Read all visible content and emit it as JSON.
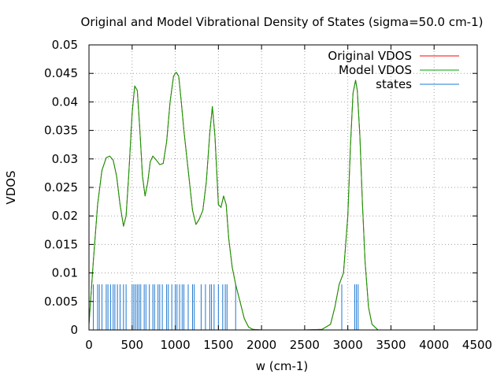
{
  "chart_data": {
    "type": "line",
    "title": "Original and Model Vibrational Density of States (sigma=50.0 cm-1)",
    "xlabel": "w (cm-1)",
    "ylabel": "VDOS",
    "xlim": [
      0,
      4500
    ],
    "ylim": [
      0,
      0.05
    ],
    "xticks": [
      "0",
      "500",
      "1000",
      "1500",
      "2000",
      "2500",
      "3000",
      "3500",
      "4000",
      "4500"
    ],
    "yticks": [
      "0",
      "0.005",
      "0.01",
      "0.015",
      "0.02",
      "0.025",
      "0.03",
      "0.035",
      "0.04",
      "0.045",
      "0.05"
    ],
    "grid": true,
    "legend_position": "top-right",
    "series": [
      {
        "name": "Original VDOS",
        "color": "#ff0000",
        "x": [
          0,
          50,
          100,
          150,
          200,
          240,
          280,
          320,
          360,
          400,
          430,
          460,
          500,
          530,
          560,
          590,
          620,
          650,
          680,
          710,
          740,
          780,
          820,
          860,
          900,
          940,
          980,
          1010,
          1040,
          1070,
          1100,
          1150,
          1200,
          1240,
          1280,
          1320,
          1360,
          1400,
          1430,
          1460,
          1500,
          1530,
          1560,
          1590,
          1620,
          1660,
          1700,
          1750,
          1800,
          1850,
          1900,
          2000,
          2500,
          2700,
          2800,
          2850,
          2900,
          2950,
          3000,
          3030,
          3060,
          3090,
          3110,
          3140,
          3170,
          3200,
          3240,
          3280,
          3350,
          4500
        ],
        "y": [
          0.001,
          0.012,
          0.022,
          0.028,
          0.0302,
          0.0305,
          0.0298,
          0.027,
          0.022,
          0.0182,
          0.02,
          0.027,
          0.038,
          0.0428,
          0.042,
          0.035,
          0.027,
          0.0235,
          0.0258,
          0.0295,
          0.0305,
          0.0298,
          0.029,
          0.0292,
          0.033,
          0.04,
          0.0445,
          0.0452,
          0.0445,
          0.04,
          0.035,
          0.028,
          0.021,
          0.0185,
          0.0195,
          0.021,
          0.026,
          0.0345,
          0.0392,
          0.034,
          0.022,
          0.0215,
          0.0235,
          0.022,
          0.016,
          0.011,
          0.008,
          0.005,
          0.002,
          0.0005,
          0.0001,
          0,
          0,
          0.0001,
          0.001,
          0.004,
          0.008,
          0.01,
          0.02,
          0.032,
          0.0415,
          0.0438,
          0.042,
          0.034,
          0.022,
          0.012,
          0.004,
          0.001,
          0,
          0
        ]
      },
      {
        "name": "Model VDOS",
        "color": "#00a000",
        "x": [
          0,
          50,
          100,
          150,
          200,
          240,
          280,
          320,
          360,
          400,
          430,
          460,
          500,
          530,
          560,
          590,
          620,
          650,
          680,
          710,
          740,
          780,
          820,
          860,
          900,
          940,
          980,
          1010,
          1040,
          1070,
          1100,
          1150,
          1200,
          1240,
          1280,
          1320,
          1360,
          1400,
          1430,
          1460,
          1500,
          1530,
          1560,
          1590,
          1620,
          1660,
          1700,
          1750,
          1800,
          1850,
          1900,
          2000,
          2500,
          2700,
          2800,
          2850,
          2900,
          2950,
          3000,
          3030,
          3060,
          3090,
          3110,
          3140,
          3170,
          3200,
          3240,
          3280,
          3350,
          4500
        ],
        "y": [
          0.001,
          0.012,
          0.022,
          0.028,
          0.0302,
          0.0305,
          0.0298,
          0.027,
          0.022,
          0.0182,
          0.02,
          0.027,
          0.038,
          0.0428,
          0.042,
          0.035,
          0.027,
          0.0235,
          0.0258,
          0.0295,
          0.0305,
          0.0298,
          0.029,
          0.0292,
          0.033,
          0.04,
          0.0445,
          0.0452,
          0.0445,
          0.04,
          0.035,
          0.028,
          0.021,
          0.0185,
          0.0195,
          0.021,
          0.026,
          0.0345,
          0.0392,
          0.034,
          0.022,
          0.0215,
          0.0235,
          0.022,
          0.016,
          0.011,
          0.008,
          0.005,
          0.002,
          0.0005,
          0.0001,
          0,
          0,
          0.0001,
          0.001,
          0.004,
          0.008,
          0.01,
          0.02,
          0.032,
          0.0415,
          0.0438,
          0.042,
          0.034,
          0.022,
          0.012,
          0.004,
          0.001,
          0,
          0
        ]
      },
      {
        "name": "states",
        "color": "#1f78d1",
        "type": "impulses",
        "height": 0.008,
        "x": [
          50,
          100,
          120,
          150,
          200,
          220,
          250,
          280,
          300,
          330,
          360,
          400,
          430,
          500,
          520,
          540,
          560,
          580,
          600,
          640,
          660,
          700,
          740,
          760,
          800,
          820,
          850,
          900,
          920,
          960,
          1000,
          1020,
          1050,
          1080,
          1100,
          1150,
          1200,
          1220,
          1300,
          1350,
          1400,
          1420,
          1450,
          1500,
          1550,
          1580,
          1600,
          1700,
          2930,
          3080,
          3100,
          3120
        ]
      }
    ]
  }
}
